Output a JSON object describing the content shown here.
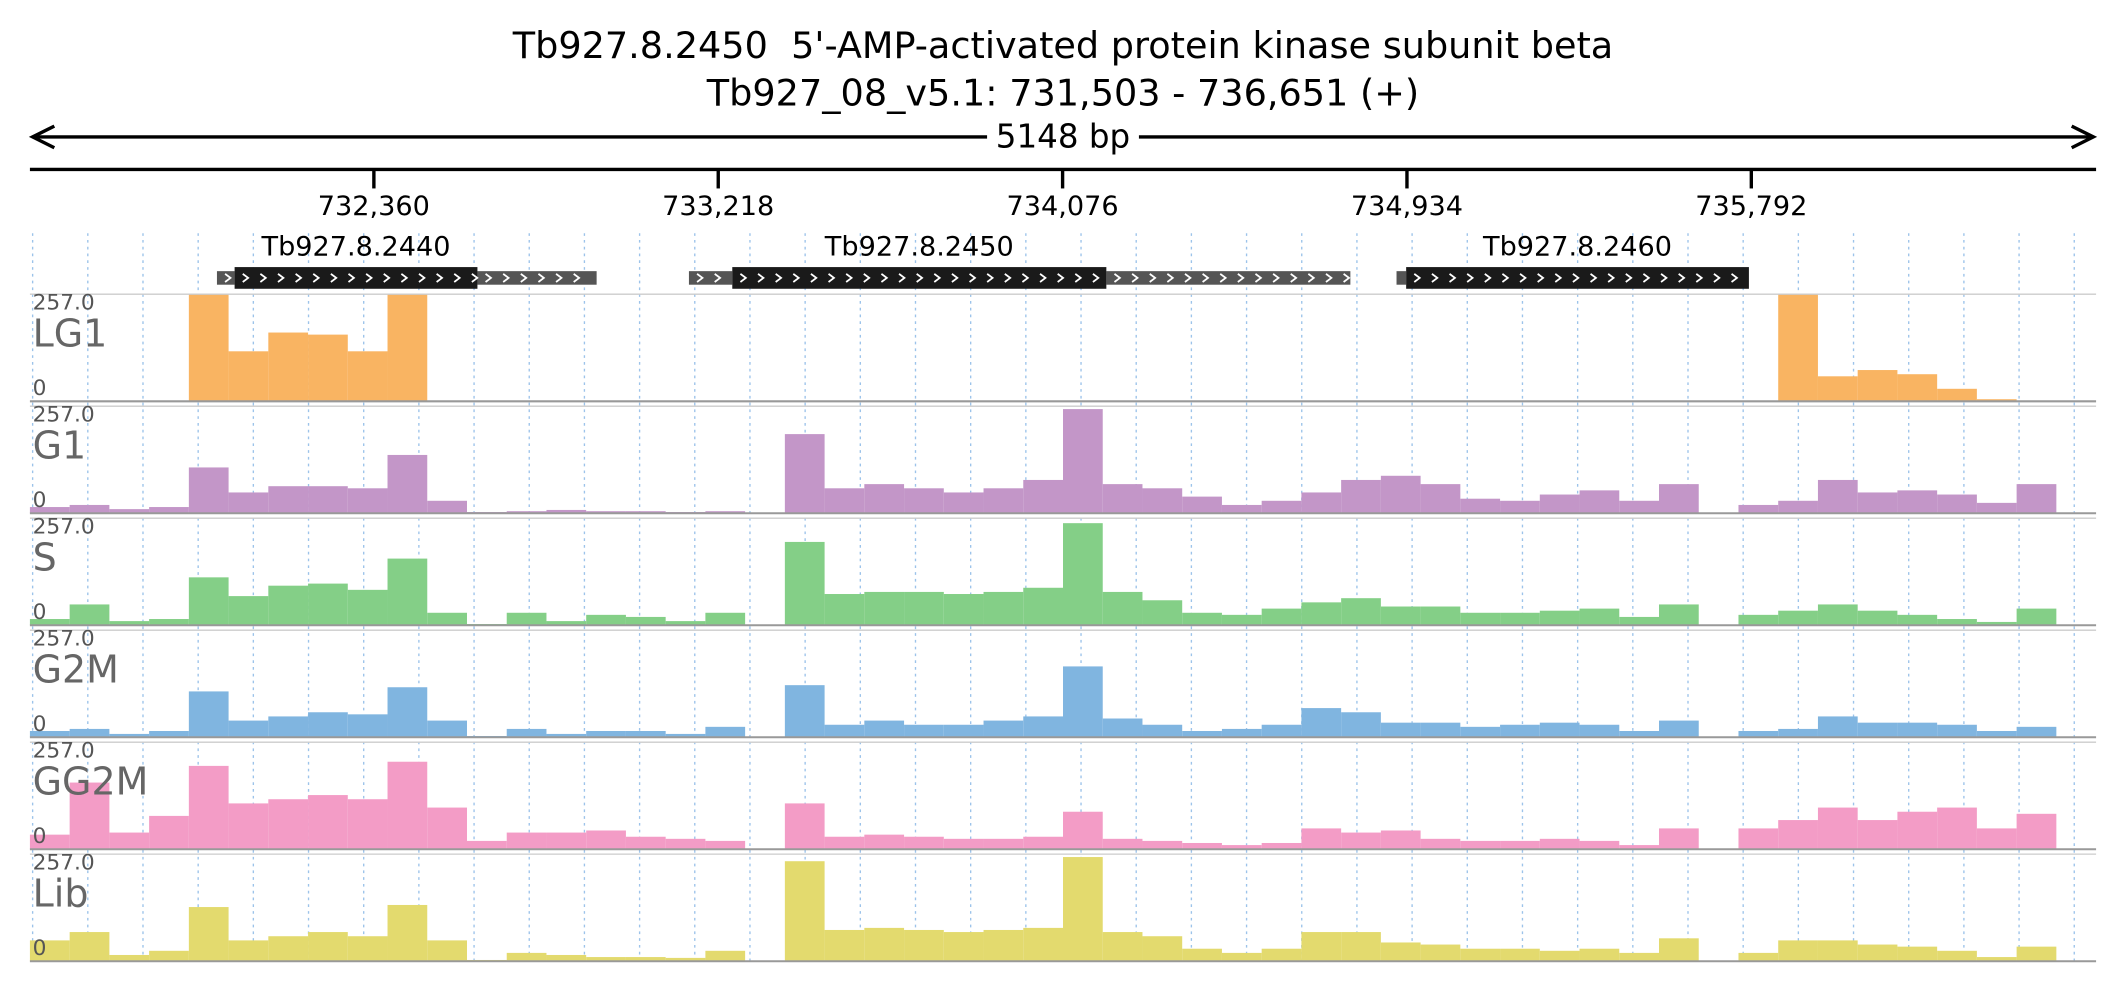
{
  "title": "Tb927.8.2450  5'-AMP-activated protein kinase subunit beta",
  "subtitle": "Tb927_08_v5.1: 731,503 - 736,651 (+)",
  "span_label": "5148 bp",
  "xlim": [
    731503,
    736651
  ],
  "xticks": [
    {
      "value": 732360,
      "label": "732,360"
    },
    {
      "value": 733218,
      "label": "733,218"
    },
    {
      "value": 734076,
      "label": "734,076"
    },
    {
      "value": 734934,
      "label": "734,934"
    },
    {
      "value": 735792,
      "label": "735,792"
    }
  ],
  "genes": [
    {
      "name": "Tb927.8.2440",
      "start": 732013,
      "end": 732618,
      "utr": [
        [
          731969,
          732013
        ],
        [
          732618,
          732915
        ]
      ]
    },
    {
      "name": "Tb927.8.2450",
      "start": 733253,
      "end": 734185,
      "utr": [
        [
          733145,
          733253
        ],
        [
          734185,
          734793
        ]
      ]
    },
    {
      "name": "Tb927.8.2460",
      "start": 734932,
      "end": 735786,
      "utr": [
        [
          734908,
          734932
        ]
      ]
    }
  ],
  "coverage": {
    "ylim": [
      0,
      257
    ],
    "yticks": [
      0,
      {
        "value": 257,
        "label": "257.0"
      }
    ],
    "tracks": [
      {
        "name": "LG1",
        "color": "#f9b462",
        "values": [
          0,
          0,
          0,
          0,
          257,
          120,
          165,
          160,
          120,
          257,
          0,
          0,
          0,
          0,
          0,
          0,
          0,
          0,
          0,
          0,
          0,
          0,
          0,
          0,
          0,
          0,
          0,
          0,
          0,
          0,
          0,
          0,
          0,
          0,
          0,
          0,
          0,
          0,
          0,
          0,
          0,
          0,
          0,
          0,
          257,
          60,
          75,
          65,
          30,
          5,
          0,
          0
        ]
      },
      {
        "name": "G1",
        "color": "#c396c8",
        "values": [
          15,
          20,
          10,
          15,
          110,
          50,
          65,
          65,
          60,
          140,
          30,
          3,
          5,
          8,
          5,
          5,
          3,
          5,
          0,
          190,
          60,
          70,
          60,
          50,
          60,
          80,
          250,
          70,
          60,
          40,
          20,
          30,
          50,
          80,
          90,
          70,
          35,
          30,
          45,
          55,
          30,
          70,
          0,
          20,
          30,
          80,
          50,
          55,
          45,
          25,
          70,
          0
        ]
      },
      {
        "name": "S",
        "color": "#84cf87",
        "values": [
          15,
          50,
          10,
          15,
          115,
          70,
          95,
          100,
          85,
          160,
          30,
          3,
          30,
          10,
          25,
          20,
          10,
          30,
          0,
          200,
          75,
          80,
          80,
          75,
          80,
          90,
          245,
          80,
          60,
          30,
          25,
          40,
          55,
          65,
          45,
          45,
          30,
          30,
          35,
          40,
          20,
          50,
          0,
          25,
          35,
          50,
          35,
          25,
          15,
          8,
          40,
          0
        ]
      },
      {
        "name": "G2M",
        "color": "#80b5e0",
        "values": [
          15,
          20,
          8,
          15,
          110,
          40,
          50,
          60,
          55,
          120,
          40,
          3,
          20,
          8,
          15,
          15,
          8,
          25,
          0,
          125,
          30,
          40,
          30,
          30,
          40,
          50,
          170,
          45,
          30,
          15,
          20,
          30,
          70,
          60,
          35,
          35,
          25,
          30,
          35,
          30,
          15,
          40,
          0,
          15,
          20,
          50,
          35,
          35,
          30,
          15,
          25,
          0
        ]
      },
      {
        "name": "GG2M",
        "color": "#f39cc6",
        "values": [
          35,
          160,
          40,
          80,
          200,
          110,
          120,
          130,
          120,
          210,
          100,
          20,
          40,
          40,
          45,
          30,
          25,
          20,
          0,
          110,
          30,
          35,
          30,
          25,
          25,
          30,
          90,
          25,
          20,
          15,
          10,
          15,
          50,
          40,
          45,
          25,
          20,
          20,
          25,
          20,
          10,
          50,
          0,
          50,
          70,
          100,
          70,
          90,
          100,
          50,
          85,
          0
        ]
      },
      {
        "name": "Lib",
        "color": "#e3da6e",
        "values": [
          50,
          70,
          15,
          25,
          130,
          50,
          60,
          70,
          60,
          135,
          50,
          3,
          20,
          15,
          10,
          10,
          8,
          25,
          0,
          240,
          75,
          80,
          75,
          70,
          75,
          80,
          250,
          70,
          60,
          30,
          20,
          30,
          70,
          70,
          45,
          40,
          30,
          30,
          25,
          30,
          20,
          55,
          0,
          20,
          50,
          50,
          40,
          35,
          25,
          10,
          35,
          0
        ]
      }
    ]
  }
}
